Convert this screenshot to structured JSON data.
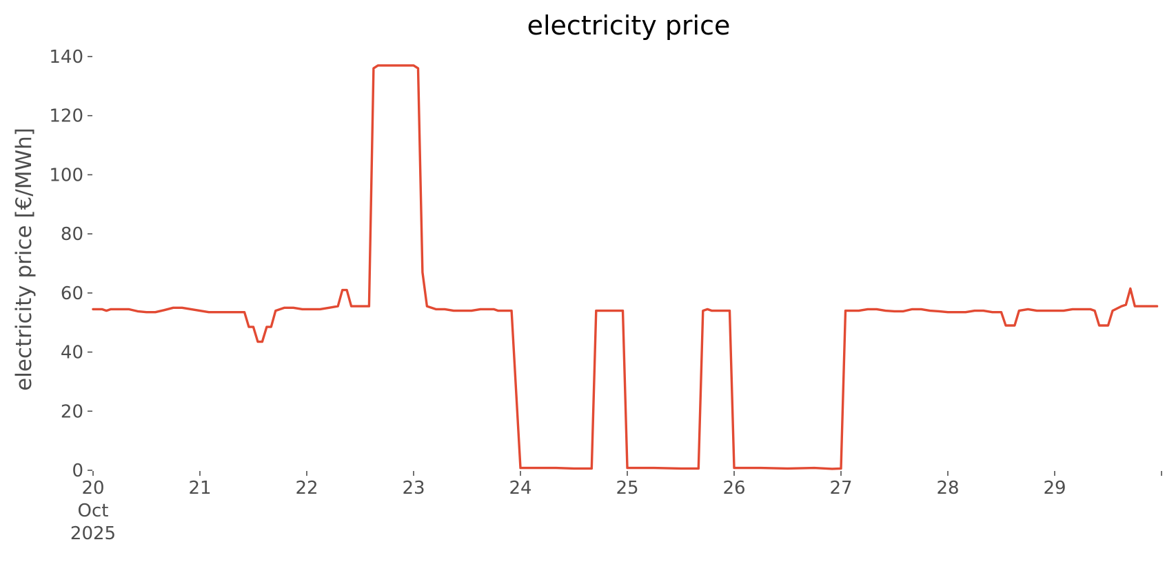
{
  "chart_data": {
    "type": "line",
    "title": "electricity price",
    "xlabel": "",
    "ylabel": "electricity price [€/MWh]",
    "xlim": [
      "2025-10-20 00:00",
      "2025-10-30 00:00"
    ],
    "ylim": [
      0,
      140
    ],
    "grid": false,
    "legend": "none",
    "yticks": [
      0,
      20,
      40,
      60,
      80,
      100,
      120,
      140
    ],
    "xticks": [
      {
        "x": "2025-10-20",
        "lines": [
          "20",
          "Oct",
          "2025"
        ]
      },
      {
        "x": "2025-10-21",
        "lines": [
          "21"
        ]
      },
      {
        "x": "2025-10-22",
        "lines": [
          "22"
        ]
      },
      {
        "x": "2025-10-23",
        "lines": [
          "23"
        ]
      },
      {
        "x": "2025-10-24",
        "lines": [
          "24"
        ]
      },
      {
        "x": "2025-10-25",
        "lines": [
          "25"
        ]
      },
      {
        "x": "2025-10-26",
        "lines": [
          "26"
        ]
      },
      {
        "x": "2025-10-27",
        "lines": [
          "27"
        ]
      },
      {
        "x": "2025-10-28",
        "lines": [
          "28"
        ]
      },
      {
        "x": "2025-10-29",
        "lines": [
          "29"
        ]
      },
      {
        "x": "2025-10-30",
        "lines": [
          ""
        ]
      }
    ],
    "series": [
      {
        "color": "#e24a33",
        "points": [
          [
            "2025-10-20 00:00",
            54.5
          ],
          [
            "2025-10-20 02:00",
            54.5
          ],
          [
            "2025-10-20 03:00",
            54.0
          ],
          [
            "2025-10-20 04:00",
            54.5
          ],
          [
            "2025-10-20 06:00",
            54.5
          ],
          [
            "2025-10-20 08:00",
            54.5
          ],
          [
            "2025-10-20 10:00",
            53.8
          ],
          [
            "2025-10-20 12:00",
            53.5
          ],
          [
            "2025-10-20 14:00",
            53.5
          ],
          [
            "2025-10-20 16:00",
            54.2
          ],
          [
            "2025-10-20 18:00",
            55.0
          ],
          [
            "2025-10-20 20:00",
            55.0
          ],
          [
            "2025-10-20 22:00",
            54.5
          ],
          [
            "2025-10-21 00:00",
            54.0
          ],
          [
            "2025-10-21 02:00",
            53.5
          ],
          [
            "2025-10-21 04:00",
            53.5
          ],
          [
            "2025-10-21 06:00",
            53.5
          ],
          [
            "2025-10-21 08:00",
            53.5
          ],
          [
            "2025-10-21 10:00",
            53.5
          ],
          [
            "2025-10-21 11:00",
            48.5
          ],
          [
            "2025-10-21 12:00",
            48.5
          ],
          [
            "2025-10-21 13:00",
            43.5
          ],
          [
            "2025-10-21 14:00",
            43.5
          ],
          [
            "2025-10-21 15:00",
            48.5
          ],
          [
            "2025-10-21 16:00",
            48.5
          ],
          [
            "2025-10-21 17:00",
            54.0
          ],
          [
            "2025-10-21 19:00",
            55.0
          ],
          [
            "2025-10-21 21:00",
            55.0
          ],
          [
            "2025-10-21 23:00",
            54.5
          ],
          [
            "2025-10-22 01:00",
            54.5
          ],
          [
            "2025-10-22 03:00",
            54.5
          ],
          [
            "2025-10-22 05:00",
            55.0
          ],
          [
            "2025-10-22 07:00",
            55.5
          ],
          [
            "2025-10-22 08:00",
            61.0
          ],
          [
            "2025-10-22 09:00",
            61.0
          ],
          [
            "2025-10-22 10:00",
            55.5
          ],
          [
            "2025-10-22 12:00",
            55.5
          ],
          [
            "2025-10-22 14:00",
            55.5
          ],
          [
            "2025-10-22 15:00",
            136.0
          ],
          [
            "2025-10-22 16:00",
            137.0
          ],
          [
            "2025-10-22 20:00",
            137.0
          ],
          [
            "2025-10-23 00:00",
            137.0
          ],
          [
            "2025-10-23 01:00",
            136.0
          ],
          [
            "2025-10-23 02:00",
            67.0
          ],
          [
            "2025-10-23 03:00",
            55.5
          ],
          [
            "2025-10-23 05:00",
            54.5
          ],
          [
            "2025-10-23 07:00",
            54.5
          ],
          [
            "2025-10-23 09:00",
            54.0
          ],
          [
            "2025-10-23 13:00",
            54.0
          ],
          [
            "2025-10-23 15:00",
            54.5
          ],
          [
            "2025-10-23 18:00",
            54.5
          ],
          [
            "2025-10-23 19:00",
            54.0
          ],
          [
            "2025-10-23 22:00",
            54.0
          ],
          [
            "2025-10-24 00:00",
            0.8
          ],
          [
            "2025-10-24 08:00",
            0.8
          ],
          [
            "2025-10-24 12:00",
            0.6
          ],
          [
            "2025-10-24 16:00",
            0.6
          ],
          [
            "2025-10-24 17:00",
            54.0
          ],
          [
            "2025-10-24 23:00",
            54.0
          ],
          [
            "2025-10-25 00:00",
            0.8
          ],
          [
            "2025-10-25 06:00",
            0.8
          ],
          [
            "2025-10-25 12:00",
            0.6
          ],
          [
            "2025-10-25 16:00",
            0.6
          ],
          [
            "2025-10-25 17:00",
            54.0
          ],
          [
            "2025-10-25 18:00",
            54.5
          ],
          [
            "2025-10-25 19:00",
            54.0
          ],
          [
            "2025-10-25 23:00",
            54.0
          ],
          [
            "2025-10-26 00:00",
            0.8
          ],
          [
            "2025-10-26 06:00",
            0.8
          ],
          [
            "2025-10-26 12:00",
            0.6
          ],
          [
            "2025-10-26 18:00",
            0.8
          ],
          [
            "2025-10-26 22:00",
            0.5
          ],
          [
            "2025-10-27 00:00",
            0.6
          ],
          [
            "2025-10-27 01:00",
            54.0
          ],
          [
            "2025-10-27 04:00",
            54.0
          ],
          [
            "2025-10-27 06:00",
            54.5
          ],
          [
            "2025-10-27 08:00",
            54.5
          ],
          [
            "2025-10-27 10:00",
            54.0
          ],
          [
            "2025-10-27 12:00",
            53.8
          ],
          [
            "2025-10-27 14:00",
            53.8
          ],
          [
            "2025-10-27 16:00",
            54.5
          ],
          [
            "2025-10-27 18:00",
            54.5
          ],
          [
            "2025-10-27 20:00",
            54.0
          ],
          [
            "2025-10-27 22:00",
            53.8
          ],
          [
            "2025-10-28 00:00",
            53.5
          ],
          [
            "2025-10-28 04:00",
            53.5
          ],
          [
            "2025-10-28 06:00",
            54.0
          ],
          [
            "2025-10-28 08:00",
            54.0
          ],
          [
            "2025-10-28 10:00",
            53.5
          ],
          [
            "2025-10-28 12:00",
            53.5
          ],
          [
            "2025-10-28 13:00",
            49.0
          ],
          [
            "2025-10-28 15:00",
            49.0
          ],
          [
            "2025-10-28 16:00",
            54.0
          ],
          [
            "2025-10-28 18:00",
            54.5
          ],
          [
            "2025-10-28 20:00",
            54.0
          ],
          [
            "2025-10-28 22:00",
            54.0
          ],
          [
            "2025-10-29 00:00",
            54.0
          ],
          [
            "2025-10-29 02:00",
            54.0
          ],
          [
            "2025-10-29 04:00",
            54.5
          ],
          [
            "2025-10-29 06:00",
            54.5
          ],
          [
            "2025-10-29 08:00",
            54.5
          ],
          [
            "2025-10-29 09:00",
            54.0
          ],
          [
            "2025-10-29 10:00",
            49.0
          ],
          [
            "2025-10-29 12:00",
            49.0
          ],
          [
            "2025-10-29 13:00",
            54.0
          ],
          [
            "2025-10-29 15:00",
            55.5
          ],
          [
            "2025-10-29 16:00",
            56.0
          ],
          [
            "2025-10-29 17:00",
            61.5
          ],
          [
            "2025-10-29 18:00",
            55.5
          ],
          [
            "2025-10-29 20:00",
            55.5
          ],
          [
            "2025-10-29 23:00",
            55.5
          ]
        ]
      }
    ]
  }
}
